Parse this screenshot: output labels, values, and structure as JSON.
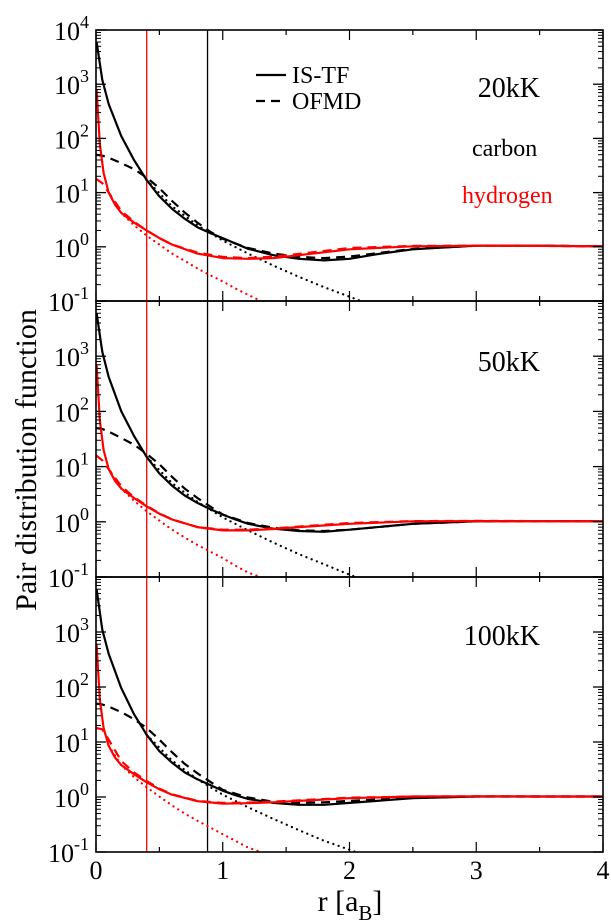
{
  "figure": {
    "ylabel": "Pair distribution function",
    "xlabel_main": "r [a",
    "xlabel_sub": "B",
    "xlabel_close": "]"
  },
  "legend": {
    "solid_label": "IS-TF",
    "dashed_label": "OFMD"
  },
  "species": {
    "carbon_label": "carbon",
    "hydrogen_label": "hydrogen",
    "carbon_color": "#000000",
    "hydrogen_color": "#ff0000"
  },
  "chart_data": [
    {
      "type": "line",
      "title": "20kK",
      "xlabel": "",
      "ylabel": "Pair distribution function",
      "xlim": [
        0,
        4
      ],
      "ylim": [
        0.1,
        10000
      ],
      "yscale": "log",
      "xticks": [],
      "yticks": [
        "10^-1",
        "10^0",
        "10^1",
        "10^2",
        "10^3",
        "10^4"
      ],
      "vlines": [
        {
          "x": 0.4,
          "color": "#ff0000"
        },
        {
          "x": 0.88,
          "color": "#000000"
        }
      ],
      "series": [
        {
          "species": "carbon",
          "method": "IS-TF",
          "style": "solid",
          "color": "#000000",
          "x": [
            0.005,
            0.05,
            0.1,
            0.2,
            0.3,
            0.4,
            0.5,
            0.6,
            0.7,
            0.8,
            0.9,
            1.0,
            1.1,
            1.2,
            1.4,
            1.6,
            1.8,
            2.0,
            2.2,
            2.5,
            3.0,
            3.5,
            4.0
          ],
          "y": [
            6000,
            1200,
            430,
            110,
            40,
            17,
            8.5,
            5,
            3.3,
            2.3,
            1.8,
            1.45,
            1.15,
            0.92,
            0.7,
            0.6,
            0.56,
            0.6,
            0.72,
            0.9,
            1.05,
            1.05,
            1.02
          ]
        },
        {
          "species": "carbon",
          "method": "OFMD",
          "style": "dashed",
          "color": "#000000",
          "x": [
            0.0,
            0.05,
            0.1,
            0.2,
            0.3,
            0.4,
            0.5,
            0.6,
            0.7,
            0.8,
            0.9,
            1.0,
            1.2,
            1.4,
            1.6,
            1.8,
            2.0,
            2.5,
            3.0,
            3.5,
            4.0
          ],
          "y": [
            50,
            48,
            44,
            35,
            27,
            19,
            12,
            7,
            4.3,
            2.8,
            1.9,
            1.4,
            0.95,
            0.75,
            0.65,
            0.62,
            0.66,
            0.92,
            1.05,
            1.05,
            1.02
          ]
        },
        {
          "species": "carbon",
          "method": "bare",
          "style": "dotted",
          "color": "#000000",
          "x": [
            0.4,
            0.6,
            0.8,
            1.0,
            1.2,
            1.4,
            1.6,
            1.8,
            2.0,
            2.2
          ],
          "y": [
            17,
            5.6,
            2.5,
            1.3,
            0.75,
            0.45,
            0.28,
            0.18,
            0.12,
            0.08
          ]
        },
        {
          "species": "hydrogen",
          "method": "IS-TF",
          "style": "solid",
          "color": "#ff0000",
          "x": [
            0.005,
            0.03,
            0.06,
            0.1,
            0.15,
            0.2,
            0.3,
            0.4,
            0.5,
            0.6,
            0.8,
            1.0,
            1.2,
            1.4,
            1.6,
            2.0,
            2.5,
            3.0,
            3.5,
            4.0
          ],
          "y": [
            800,
            80,
            23,
            10,
            6,
            4.2,
            2.8,
            2,
            1.45,
            1.1,
            0.75,
            0.62,
            0.6,
            0.62,
            0.7,
            0.9,
            1.02,
            1.05,
            1.04,
            1.02
          ]
        },
        {
          "species": "hydrogen",
          "method": "OFMD",
          "style": "dashed",
          "color": "#ff0000",
          "x": [
            0.0,
            0.05,
            0.1,
            0.2,
            0.3,
            0.4,
            0.5,
            0.6,
            0.8,
            1.0,
            1.2,
            1.4,
            1.6,
            2.0,
            2.5,
            3.0,
            3.5,
            4.0
          ],
          "y": [
            18,
            15,
            10,
            4.6,
            2.9,
            2,
            1.45,
            1.1,
            0.78,
            0.65,
            0.62,
            0.66,
            0.74,
            0.95,
            1.04,
            1.05,
            1.04,
            1.02
          ]
        },
        {
          "species": "hydrogen",
          "method": "bare",
          "style": "dotted",
          "color": "#ff0000",
          "x": [
            0.1,
            0.2,
            0.3,
            0.4,
            0.5,
            0.6,
            0.7,
            0.8,
            0.9,
            1.0,
            1.1,
            1.2,
            1.3
          ],
          "y": [
            10,
            4.2,
            2.5,
            1.6,
            1.1,
            0.75,
            0.55,
            0.4,
            0.3,
            0.23,
            0.17,
            0.13,
            0.1
          ]
        }
      ]
    },
    {
      "type": "line",
      "title": "50kK",
      "xlabel": "",
      "ylabel": "Pair distribution function",
      "xlim": [
        0,
        4
      ],
      "ylim": [
        0.1,
        10000
      ],
      "yscale": "log",
      "xticks": [],
      "yticks": [
        "10^-1",
        "10^0",
        "10^1",
        "10^2",
        "10^3"
      ],
      "vlines": [
        {
          "x": 0.4,
          "color": "#ff0000"
        },
        {
          "x": 0.88,
          "color": "#000000"
        }
      ],
      "series": [
        {
          "species": "carbon",
          "method": "IS-TF",
          "style": "solid",
          "color": "#000000",
          "x": [
            0.005,
            0.05,
            0.1,
            0.2,
            0.3,
            0.4,
            0.5,
            0.6,
            0.7,
            0.8,
            0.9,
            1.0,
            1.1,
            1.2,
            1.4,
            1.6,
            1.8,
            2.0,
            2.5,
            3.0,
            3.5,
            4.0
          ],
          "y": [
            6000,
            1200,
            420,
            100,
            36,
            15,
            7.5,
            4.5,
            3,
            2.2,
            1.7,
            1.35,
            1.1,
            0.92,
            0.75,
            0.68,
            0.66,
            0.72,
            0.92,
            1.02,
            1.03,
            1.02
          ]
        },
        {
          "species": "carbon",
          "method": "OFMD",
          "style": "dashed",
          "color": "#000000",
          "x": [
            0.0,
            0.05,
            0.1,
            0.2,
            0.3,
            0.4,
            0.5,
            0.6,
            0.7,
            0.8,
            0.9,
            1.0,
            1.2,
            1.4,
            1.6,
            1.8,
            2.0,
            2.5,
            3.0,
            3.5,
            4.0
          ],
          "y": [
            50,
            48,
            43,
            33,
            25,
            17,
            11,
            6.5,
            4,
            2.7,
            1.9,
            1.35,
            0.95,
            0.78,
            0.7,
            0.68,
            0.72,
            0.92,
            1.02,
            1.03,
            1.02
          ]
        },
        {
          "species": "carbon",
          "method": "bare",
          "style": "dotted",
          "color": "#000000",
          "x": [
            0.4,
            0.6,
            0.8,
            1.0,
            1.2,
            1.4,
            1.6,
            1.8,
            2.0,
            2.2
          ],
          "y": [
            15,
            5,
            2.3,
            1.2,
            0.7,
            0.42,
            0.26,
            0.17,
            0.11,
            0.075
          ]
        },
        {
          "species": "hydrogen",
          "method": "IS-TF",
          "style": "solid",
          "color": "#ff0000",
          "x": [
            0.005,
            0.03,
            0.06,
            0.1,
            0.15,
            0.2,
            0.3,
            0.4,
            0.5,
            0.6,
            0.8,
            1.0,
            1.2,
            1.4,
            1.6,
            2.0,
            2.5,
            3.0,
            3.5,
            4.0
          ],
          "y": [
            700,
            70,
            20,
            9,
            5.5,
            4,
            2.7,
            1.9,
            1.4,
            1.1,
            0.8,
            0.7,
            0.7,
            0.74,
            0.8,
            0.92,
            1.02,
            1.03,
            1.03,
            1.02
          ]
        },
        {
          "species": "hydrogen",
          "method": "OFMD",
          "style": "dashed",
          "color": "#ff0000",
          "x": [
            0.0,
            0.05,
            0.1,
            0.2,
            0.3,
            0.4,
            0.5,
            0.6,
            0.8,
            1.0,
            1.2,
            1.4,
            1.6,
            2.0,
            2.5,
            3.0,
            3.5,
            4.0
          ],
          "y": [
            16,
            13,
            9,
            4.4,
            2.8,
            1.95,
            1.42,
            1.1,
            0.8,
            0.72,
            0.72,
            0.76,
            0.82,
            0.95,
            1.03,
            1.04,
            1.03,
            1.02
          ]
        },
        {
          "species": "hydrogen",
          "method": "bare",
          "style": "dotted",
          "color": "#ff0000",
          "x": [
            0.1,
            0.2,
            0.3,
            0.4,
            0.5,
            0.6,
            0.7,
            0.8,
            0.9,
            1.0,
            1.1,
            1.2,
            1.3
          ],
          "y": [
            9,
            4,
            2.4,
            1.55,
            1.05,
            0.72,
            0.52,
            0.38,
            0.29,
            0.22,
            0.16,
            0.12,
            0.1
          ]
        }
      ]
    },
    {
      "type": "line",
      "title": "100kK",
      "xlabel": "r [aB]",
      "ylabel": "Pair distribution function",
      "xlim": [
        0,
        4
      ],
      "ylim": [
        0.1,
        10000
      ],
      "yscale": "log",
      "xticks": [
        "0",
        "1",
        "2",
        "3",
        "4"
      ],
      "yticks": [
        "10^-1",
        "10^0",
        "10^1",
        "10^2",
        "10^3"
      ],
      "vlines": [
        {
          "x": 0.4,
          "color": "#ff0000"
        },
        {
          "x": 0.88,
          "color": "#000000"
        }
      ],
      "series": [
        {
          "species": "carbon",
          "method": "IS-TF",
          "style": "solid",
          "color": "#000000",
          "x": [
            0.005,
            0.05,
            0.1,
            0.2,
            0.3,
            0.4,
            0.5,
            0.6,
            0.7,
            0.8,
            0.9,
            1.0,
            1.1,
            1.2,
            1.4,
            1.6,
            1.8,
            2.0,
            2.5,
            3.0,
            3.5,
            4.0
          ],
          "y": [
            6000,
            1100,
            400,
            95,
            32,
            13.5,
            6.8,
            4.2,
            2.8,
            2.1,
            1.65,
            1.3,
            1.08,
            0.92,
            0.78,
            0.72,
            0.72,
            0.78,
            0.95,
            1.02,
            1.02,
            1.02
          ]
        },
        {
          "species": "carbon",
          "method": "OFMD",
          "style": "dashed",
          "color": "#000000",
          "x": [
            0.0,
            0.05,
            0.1,
            0.2,
            0.3,
            0.4,
            0.5,
            0.6,
            0.7,
            0.8,
            0.9,
            1.0,
            1.2,
            1.4,
            1.6,
            1.8,
            2.0,
            2.5,
            3.0,
            3.5,
            4.0
          ],
          "y": [
            50,
            48,
            44,
            35,
            26,
            18,
            11,
            6.5,
            4,
            2.7,
            1.9,
            1.35,
            0.98,
            0.82,
            0.78,
            0.8,
            0.85,
            0.97,
            1.02,
            1.02,
            1.02
          ]
        },
        {
          "species": "carbon",
          "method": "bare",
          "style": "dotted",
          "color": "#000000",
          "x": [
            0.4,
            0.6,
            0.8,
            1.0,
            1.2,
            1.4,
            1.6,
            1.8,
            2.0,
            2.2
          ],
          "y": [
            13.5,
            4.6,
            2.1,
            1.1,
            0.65,
            0.4,
            0.25,
            0.16,
            0.11,
            0.075
          ]
        },
        {
          "species": "hydrogen",
          "method": "IS-TF",
          "style": "solid",
          "color": "#ff0000",
          "x": [
            0.005,
            0.03,
            0.06,
            0.1,
            0.15,
            0.2,
            0.3,
            0.4,
            0.5,
            0.6,
            0.8,
            1.0,
            1.2,
            1.4,
            1.6,
            2.0,
            2.5,
            3.0,
            3.5,
            4.0
          ],
          "y": [
            600,
            60,
            18,
            8.5,
            5.2,
            3.8,
            2.6,
            1.85,
            1.38,
            1.1,
            0.84,
            0.76,
            0.77,
            0.8,
            0.85,
            0.95,
            1.02,
            1.03,
            1.02,
            1.02
          ]
        },
        {
          "species": "hydrogen",
          "method": "OFMD",
          "style": "dashed",
          "color": "#ff0000",
          "x": [
            0.0,
            0.05,
            0.1,
            0.2,
            0.3,
            0.4,
            0.5,
            0.6,
            0.8,
            1.0,
            1.2,
            1.4,
            1.6,
            2.0,
            2.5,
            3.0,
            3.5,
            4.0
          ],
          "y": [
            18,
            17,
            11,
            4.5,
            2.8,
            1.95,
            1.42,
            1.12,
            0.85,
            0.78,
            0.79,
            0.82,
            0.87,
            0.97,
            1.02,
            1.03,
            1.02,
            1.02
          ]
        },
        {
          "species": "hydrogen",
          "method": "bare",
          "style": "dotted",
          "color": "#ff0000",
          "x": [
            0.1,
            0.2,
            0.3,
            0.4,
            0.5,
            0.6,
            0.7,
            0.8,
            0.9,
            1.0,
            1.1,
            1.2,
            1.3
          ],
          "y": [
            8.5,
            3.8,
            2.3,
            1.5,
            1.02,
            0.7,
            0.5,
            0.37,
            0.28,
            0.21,
            0.16,
            0.12,
            0.1
          ]
        }
      ]
    }
  ]
}
